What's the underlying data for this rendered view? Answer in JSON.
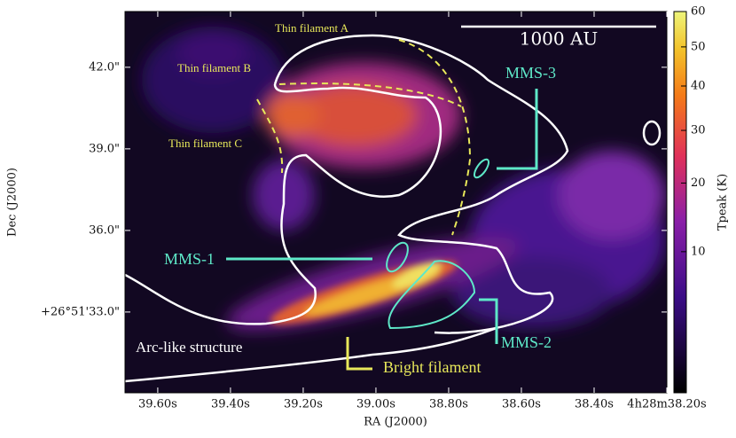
{
  "chart_data": {
    "type": "image",
    "xlabel": "RA (J2000)",
    "ylabel": "Dec (J2000)",
    "xlim": [
      39.69,
      38.2
    ],
    "xticks": [
      {
        "value": 39.6,
        "label": "39.60s"
      },
      {
        "value": 39.4,
        "label": "39.40s"
      },
      {
        "value": 39.2,
        "label": "39.20s"
      },
      {
        "value": 39.0,
        "label": "39.00s"
      },
      {
        "value": 38.8,
        "label": "38.80s"
      },
      {
        "value": 38.6,
        "label": "38.60s"
      },
      {
        "value": 38.4,
        "label": "38.40s"
      },
      {
        "value": 38.2,
        "label": "4h28m38.20s"
      }
    ],
    "ylim": [
      30.03,
      44.05
    ],
    "yticks": [
      {
        "value": 33,
        "label": "+26°51'33.0\""
      },
      {
        "value": 36,
        "label": "36.0\""
      },
      {
        "value": 39,
        "label": "39.0\""
      },
      {
        "value": 42,
        "label": "42.0\""
      }
    ],
    "colorbar": {
      "label": "Tpeak (K)",
      "lim": [
        0.22,
        60
      ],
      "scale": "sqrt",
      "ticks": [
        10,
        20,
        30,
        40,
        50,
        60
      ]
    },
    "scale_bar": "1000 AU",
    "annotations": [
      "Thin filament A",
      "Thin filament B",
      "Thin filament C",
      "MMS-3",
      "MMS-1",
      "MMS-2",
      "Arc-like structure",
      "Bright filament"
    ]
  }
}
